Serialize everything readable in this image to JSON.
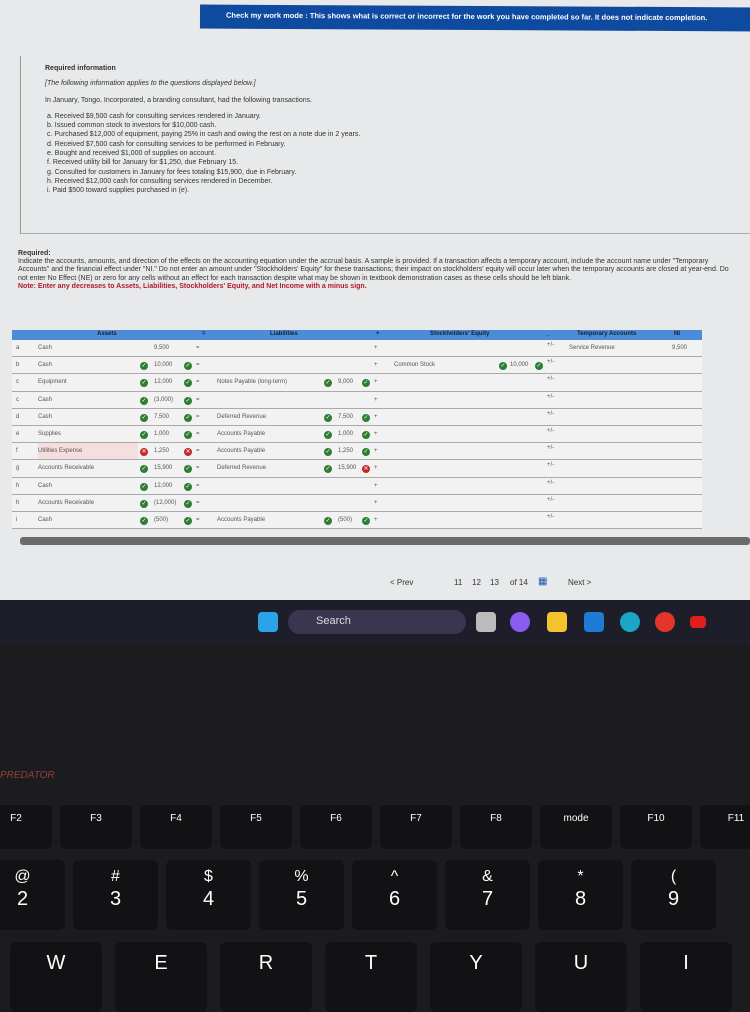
{
  "banner": "Check my work mode : This shows what is correct or incorrect for the work you have completed so far. It does not indicate completion.",
  "info": {
    "heading": "Required information",
    "italic": "[The following information applies to the questions displayed below.]",
    "intro": "In January, Tongo, Incorporated, a branding consultant, had the following transactions.",
    "items": [
      "a. Received $9,500 cash for consulting services rendered in January.",
      "b. Issued common stock to investors for $10,000 cash.",
      "c. Purchased $12,000 of equipment, paying 25% in cash and owing the rest on a note due in 2 years.",
      "d. Received $7,500 cash for consulting services to be performed in February.",
      "e. Bought and received $1,000 of supplies on account.",
      "f. Received utility bill for January for $1,250, due February 15.",
      "g. Consulted for customers in January for fees totaling $15,900, due in February.",
      "h. Received $12,000 cash for consulting services rendered in December.",
      "i. Paid $500 toward supplies purchased in (e)."
    ]
  },
  "required": {
    "heading": "Required:",
    "text": "Indicate the accounts, amounts, and direction of the effects on the accounting equation under the accrual basis. A sample is provided. If a transaction affects a temporary account, include the account name under \"Temporary Accounts\" and the financial effect under \"NI.\" Do not enter an amount under \"Stockholders' Equity\" for these transactions; their impact on stockholders' equity will occur later when the temporary accounts are closed at year-end. Do not enter No Effect (NE) or zero for any cells without an effect for each transaction despite what may be shown in textbook demonstration cases as these cells should be left blank.",
    "note": "Note: Enter any decreases to Assets, Liabilities, Stockholders' Equity, and Net Income with a minus sign."
  },
  "table": {
    "headers": {
      "assets": "Assets",
      "eq": "=",
      "liabilities": "Liabilities",
      "plus": "+",
      "equity": "Stockholders' Equity",
      "minus": "_",
      "temp": "Temporary Accounts",
      "ni": "NI"
    },
    "rows": [
      {
        "t": "a",
        "asset": "Cash",
        "amt": "9,500",
        "ac": "",
        "sign": "=",
        "liab": "",
        "lamt": "",
        "lc": "",
        "se": "",
        "seamt": "",
        "temp": "Service Revenue",
        "ni": "9,500"
      },
      {
        "t": "b",
        "asset": "Cash",
        "amt": "10,000",
        "ac": "ok",
        "sign": "=",
        "liab": "",
        "lamt": "",
        "lc": "",
        "se": "Common Stock",
        "seamt": "10,000",
        "temp": "",
        "ni": ""
      },
      {
        "t": "c",
        "asset": "Equipment",
        "amt": "12,000",
        "ac": "ok",
        "sign": "=",
        "liab": "Notes Payable (long-term)",
        "lamt": "9,000",
        "lc": "ok",
        "se": "",
        "seamt": "",
        "temp": "",
        "ni": ""
      },
      {
        "t": "c",
        "asset": "Cash",
        "amt": "(3,000)",
        "ac": "ok",
        "sign": "=",
        "liab": "",
        "lamt": "",
        "lc": "",
        "se": "",
        "seamt": "",
        "temp": "",
        "ni": ""
      },
      {
        "t": "d",
        "asset": "Cash",
        "amt": "7,500",
        "ac": "ok",
        "sign": "=",
        "liab": "Deferred Revenue",
        "lamt": "7,500",
        "lc": "ok",
        "se": "",
        "seamt": "",
        "temp": "",
        "ni": ""
      },
      {
        "t": "e",
        "asset": "Supplies",
        "amt": "1,000",
        "ac": "ok",
        "sign": "=",
        "liab": "Accounts Payable",
        "lamt": "1,000",
        "lc": "ok",
        "se": "",
        "seamt": "",
        "temp": "",
        "ni": ""
      },
      {
        "t": "f",
        "asset": "Utilities Expense",
        "amt": "1,250",
        "ac": "x",
        "sign": "=",
        "liab": "Accounts Payable",
        "lamt": "1,250",
        "lc": "ok",
        "se": "",
        "seamt": "",
        "temp": "",
        "ni": ""
      },
      {
        "t": "g",
        "asset": "Accounts Receivable",
        "amt": "15,900",
        "ac": "ok",
        "sign": "=",
        "liab": "Deferred Revenue",
        "lamt": "15,900",
        "lc": "x",
        "se": "",
        "seamt": "",
        "temp": "",
        "ni": ""
      },
      {
        "t": "h",
        "asset": "Cash",
        "amt": "12,000",
        "ac": "ok",
        "sign": "=",
        "liab": "",
        "lamt": "",
        "lc": "",
        "se": "",
        "seamt": "",
        "temp": "",
        "ni": ""
      },
      {
        "t": "h",
        "asset": "Accounts Receivable",
        "amt": "(12,000)",
        "ac": "ok",
        "sign": "=",
        "liab": "",
        "lamt": "",
        "lc": "",
        "se": "",
        "seamt": "",
        "temp": "",
        "ni": ""
      },
      {
        "t": "i",
        "asset": "Cash",
        "amt": "(500)",
        "ac": "ok",
        "sign": "=",
        "liab": "Accounts Payable",
        "lamt": "(500)",
        "lc": "ok",
        "se": "",
        "seamt": "",
        "temp": "",
        "ni": ""
      }
    ],
    "pm": "+/-",
    "plus": "+"
  },
  "nav": {
    "prev": "< Prev",
    "pages": [
      "11",
      "12",
      "13"
    ],
    "of": "of 14",
    "next": "Next >"
  },
  "taskbar": {
    "search": "Search"
  },
  "keyboard": {
    "brand": "PREDATOR",
    "fn": [
      [
        "F2",
        ""
      ],
      [
        "F3",
        ""
      ],
      [
        "F4",
        ""
      ],
      [
        "F5",
        ""
      ],
      [
        "F6",
        ""
      ],
      [
        "F7",
        ""
      ],
      [
        "F8",
        ""
      ],
      [
        "F9",
        "mode"
      ],
      [
        "F10",
        ""
      ],
      [
        "F11",
        ""
      ]
    ],
    "num": [
      [
        "@",
        "2"
      ],
      [
        "#",
        "3"
      ],
      [
        "$",
        "4"
      ],
      [
        "%",
        "5"
      ],
      [
        "^",
        "6"
      ],
      [
        "&",
        "7"
      ],
      [
        "*",
        "8"
      ],
      [
        "(",
        "9"
      ]
    ],
    "letters": [
      "W",
      "E",
      "R",
      "T",
      "Y",
      "U",
      "I"
    ]
  },
  "colors": {
    "banner": "#0d4aa0",
    "header": "#4c8bd6",
    "correct": "#2e7d32",
    "incorrect": "#c62828",
    "note": "#b0182b"
  }
}
